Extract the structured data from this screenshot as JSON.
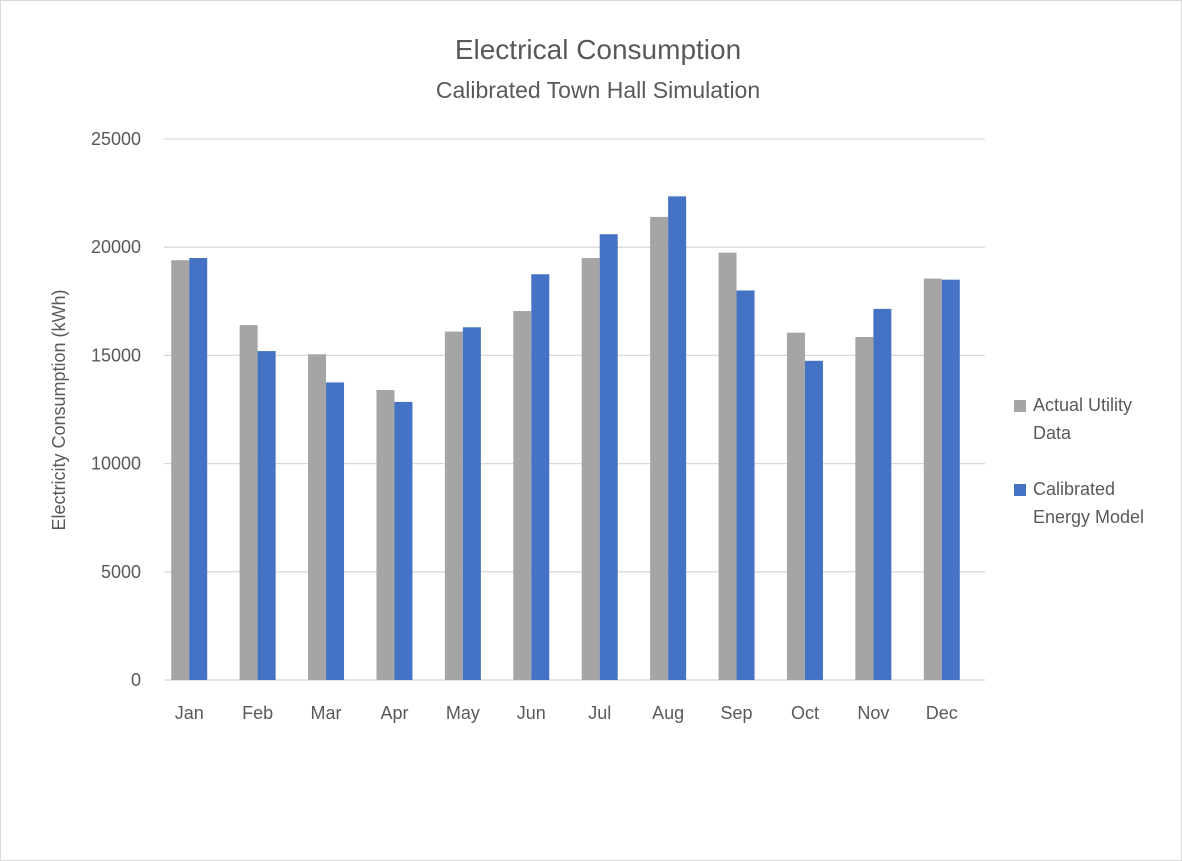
{
  "chart_data": {
    "type": "bar",
    "title": "Electrical Consumption",
    "subtitle": "Calibrated Town Hall Simulation",
    "xlabel": "",
    "ylabel": "Electricity Consumption (kWh)",
    "ylim": [
      0,
      25000
    ],
    "yticks": [
      "0",
      "5000",
      "10000",
      "15000",
      "20000",
      "25000"
    ],
    "grid": true,
    "legend_position": "right",
    "categories": [
      "Jan",
      "Feb",
      "Mar",
      "Apr",
      "May",
      "Jun",
      "Jul",
      "Aug",
      "Sep",
      "Oct",
      "Nov",
      "Dec"
    ],
    "series": [
      {
        "name": "Actual Utility Data",
        "legend_lines": [
          "Actual Utility",
          "Data"
        ],
        "color": "#a5a5a5",
        "values": [
          19400,
          16400,
          15050,
          13400,
          16100,
          17050,
          19500,
          21400,
          19750,
          16050,
          15850,
          18550
        ]
      },
      {
        "name": "Calibrated Energy Model",
        "legend_lines": [
          "Calibrated",
          "Energy Model"
        ],
        "color": "#4472c4",
        "values": [
          19500,
          15200,
          13750,
          12850,
          16300,
          18750,
          20600,
          22350,
          18000,
          14750,
          17150,
          18500
        ]
      }
    ]
  }
}
